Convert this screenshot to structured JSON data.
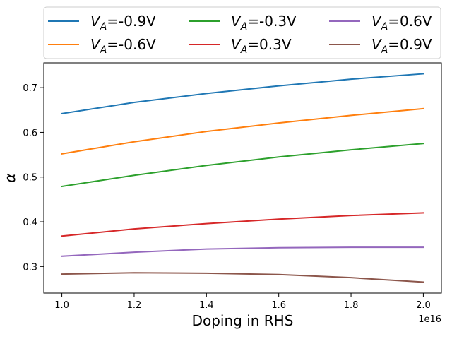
{
  "chart_data": {
    "type": "line",
    "title": "",
    "xlabel": "Doping in RHS",
    "ylabel": "α",
    "x_offset_label": "1e16",
    "x": [
      1.0,
      1.2,
      1.4,
      1.6,
      1.8,
      2.0
    ],
    "x_ticks": [
      1.0,
      1.2,
      1.4,
      1.6,
      1.8,
      2.0
    ],
    "x_tick_labels": [
      "1.0",
      "1.2",
      "1.4",
      "1.6",
      "1.8",
      "2.0"
    ],
    "y_ticks": [
      0.3,
      0.4,
      0.5,
      0.6,
      0.7
    ],
    "y_tick_labels": [
      "0.3",
      "0.4",
      "0.5",
      "0.6",
      "0.7"
    ],
    "xlim": [
      0.95,
      2.05
    ],
    "ylim": [
      0.2405,
      0.7555
    ],
    "grid": false,
    "legend_position": "top (above plot), 3 columns",
    "series": [
      {
        "name": "V_A=-0.9V",
        "legend_sub": "A",
        "legend_prefix": "V",
        "legend_suffix": "=-0.9V",
        "color": "#1f77b4",
        "values": [
          0.642,
          0.667,
          0.687,
          0.704,
          0.719,
          0.731
        ]
      },
      {
        "name": "V_A=-0.6V",
        "legend_sub": "A",
        "legend_prefix": "V",
        "legend_suffix": "=-0.6V",
        "color": "#ff7f0e",
        "values": [
          0.552,
          0.579,
          0.602,
          0.621,
          0.638,
          0.653
        ]
      },
      {
        "name": "V_A=-0.3V",
        "legend_sub": "A",
        "legend_prefix": "V",
        "legend_suffix": "=-0.3V",
        "color": "#2ca02c",
        "values": [
          0.479,
          0.504,
          0.526,
          0.545,
          0.561,
          0.575
        ]
      },
      {
        "name": "V_A=0.3V",
        "legend_sub": "A",
        "legend_prefix": "V",
        "legend_suffix": "=0.3V",
        "color": "#d62728",
        "values": [
          0.368,
          0.384,
          0.396,
          0.406,
          0.414,
          0.42
        ]
      },
      {
        "name": "V_A=0.6V",
        "legend_sub": "A",
        "legend_prefix": "V",
        "legend_suffix": "=0.6V",
        "color": "#9467bd",
        "values": [
          0.323,
          0.332,
          0.339,
          0.342,
          0.343,
          0.343
        ]
      },
      {
        "name": "V_A=0.9V",
        "legend_sub": "A",
        "legend_prefix": "V",
        "legend_suffix": "=0.9V",
        "color": "#8c564b",
        "values": [
          0.283,
          0.286,
          0.285,
          0.282,
          0.275,
          0.265
        ]
      }
    ]
  }
}
